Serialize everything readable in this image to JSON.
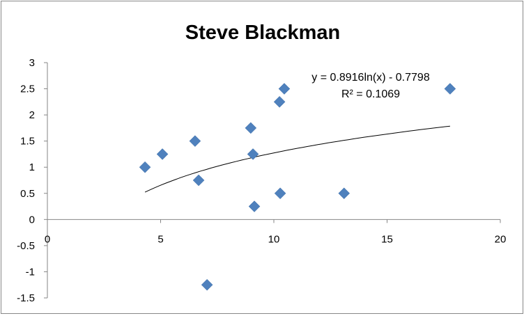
{
  "chart_data": {
    "type": "scatter",
    "title": "Steve Blackman",
    "xlabel": "",
    "ylabel": "",
    "xlim": [
      0,
      20
    ],
    "ylim": [
      -1.5,
      3
    ],
    "x_ticks": [
      "0",
      "5",
      "10",
      "15",
      "20"
    ],
    "x_tick_values": [
      0,
      5,
      10,
      15,
      20
    ],
    "y_ticks": [
      "3",
      "2.5",
      "2",
      "1.5",
      "1",
      "0.5",
      "0",
      "-0.5",
      "-1",
      "-1.5"
    ],
    "y_tick_values": [
      3,
      2.5,
      2,
      1.5,
      1,
      0.5,
      0,
      -0.5,
      -1,
      -1.5
    ],
    "grid": false,
    "marker_color": "#4F81BD",
    "points": [
      {
        "x": 4.31,
        "y": 1.0
      },
      {
        "x": 5.08,
        "y": 1.25
      },
      {
        "x": 6.52,
        "y": 1.5
      },
      {
        "x": 6.68,
        "y": 0.75
      },
      {
        "x": 7.05,
        "y": -1.25
      },
      {
        "x": 8.98,
        "y": 1.75
      },
      {
        "x": 9.08,
        "y": 1.25
      },
      {
        "x": 9.14,
        "y": 0.25
      },
      {
        "x": 10.25,
        "y": 2.25
      },
      {
        "x": 10.28,
        "y": 0.5
      },
      {
        "x": 10.46,
        "y": 2.5
      },
      {
        "x": 13.1,
        "y": 0.5
      },
      {
        "x": 17.78,
        "y": 2.5
      }
    ],
    "trendline": {
      "type": "logarithmic",
      "a": 0.8916,
      "b": -0.7798,
      "x_range": [
        4.31,
        17.78
      ],
      "equation": "y = 0.8916ln(x) - 0.7798",
      "r_squared": "R² = 0.1069"
    }
  }
}
